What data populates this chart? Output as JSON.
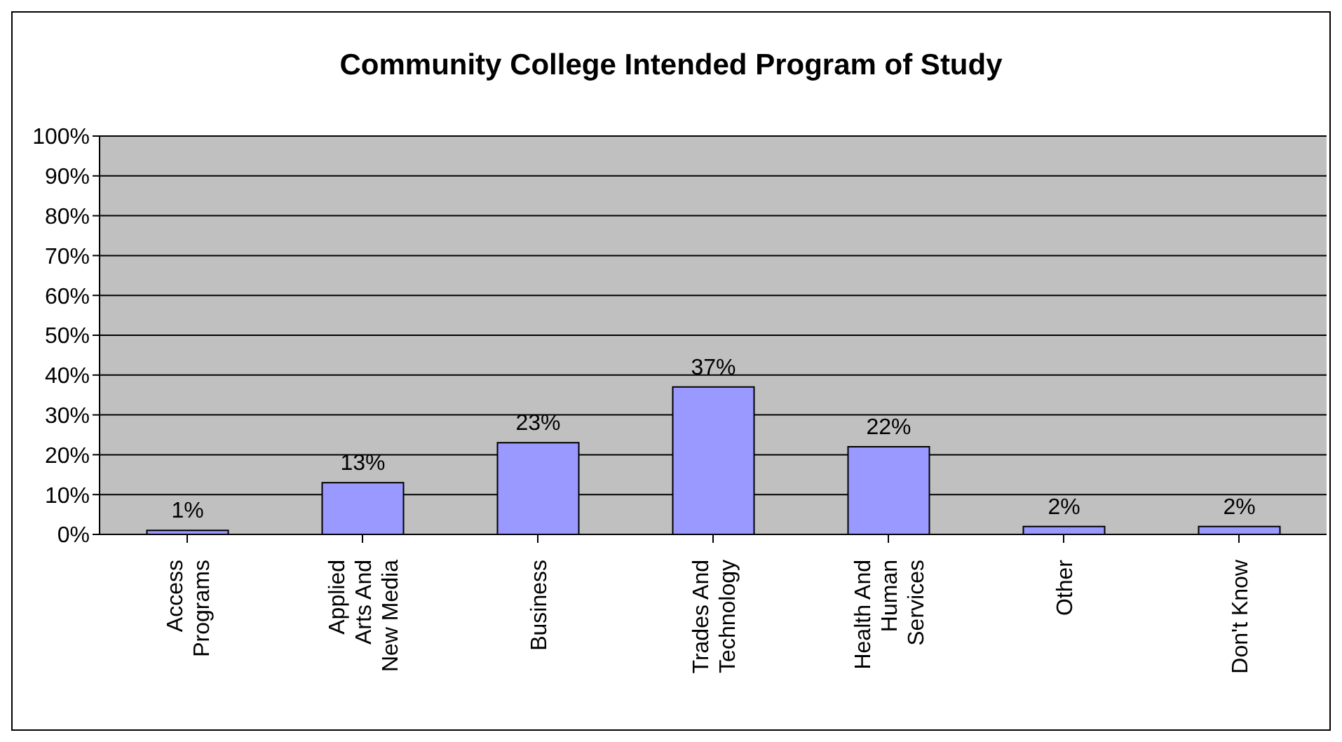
{
  "chart_data": {
    "type": "bar",
    "title": "Community College Intended Program of Study",
    "categories": [
      "Access Programs",
      "Applied Arts And New Media",
      "Business",
      "Trades And Technology",
      "Health And Human Services",
      "Other",
      "Don't Know"
    ],
    "values": [
      1,
      13,
      23,
      37,
      22,
      2,
      2
    ],
    "value_labels": [
      "1%",
      "13%",
      "23%",
      "37%",
      "22%",
      "2%",
      "2%"
    ],
    "color": "#9999ff",
    "ylim": [
      0,
      100
    ],
    "yticks": [
      {
        "value": 0,
        "label": "0%"
      },
      {
        "value": 10,
        "label": "10%"
      },
      {
        "value": 20,
        "label": "20%"
      },
      {
        "value": 30,
        "label": "30%"
      },
      {
        "value": 40,
        "label": "40%"
      },
      {
        "value": 50,
        "label": "50%"
      },
      {
        "value": 60,
        "label": "60%"
      },
      {
        "value": 70,
        "label": "70%"
      },
      {
        "value": 80,
        "label": "80%"
      },
      {
        "value": 90,
        "label": "90%"
      },
      {
        "value": 100,
        "label": "100%"
      }
    ],
    "grid": "y"
  }
}
